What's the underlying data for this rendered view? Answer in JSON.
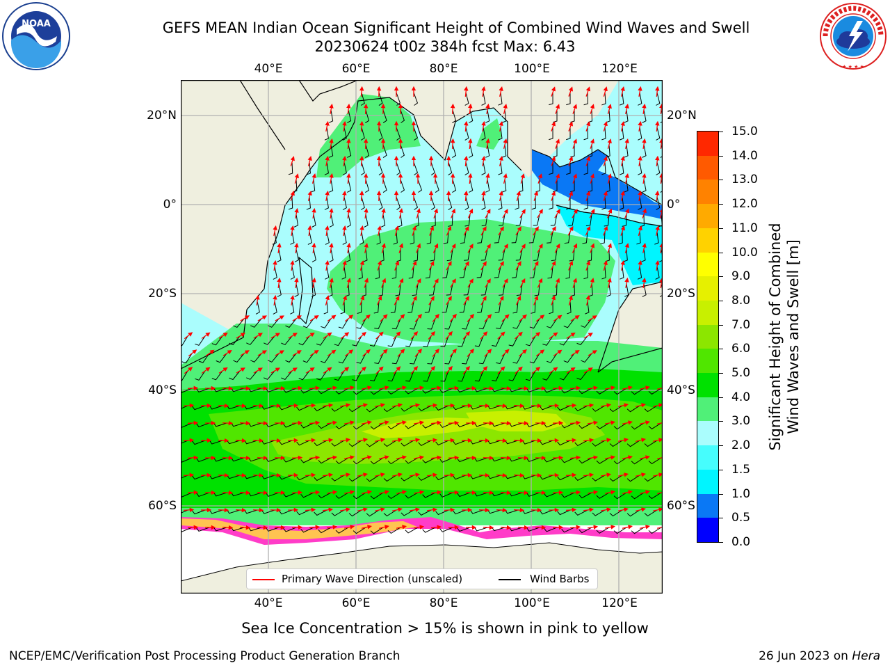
{
  "title": {
    "line1": "GEFS MEAN Indian Ocean Significant Height of Combined Wind Waves and Swell",
    "line2": "20230624 t00z 384h fcst   Max: 6.43"
  },
  "logos": {
    "noaa": {
      "text": "NOAA",
      "icon": "noaa-logo-icon"
    },
    "nws": {
      "icon": "nws-logo-icon"
    }
  },
  "axes": {
    "lon_ticks": [
      "40°E",
      "60°E",
      "80°E",
      "100°E",
      "120°E"
    ],
    "lat_ticks_left": [
      "20°N",
      "0°",
      "20°S",
      "40°S",
      "60°S"
    ],
    "lat_ticks_right": [
      "20°N",
      "0°",
      "20°S",
      "40°S",
      "60°S"
    ]
  },
  "colorbar": {
    "label": "Significant Height of Combined\nWind Waves and Swell [m]",
    "label_line1": "Significant Height of Combined",
    "label_line2": "Wind Waves and Swell [m]",
    "ticks": [
      "0.0",
      "0.5",
      "1.0",
      "1.5",
      "2.0",
      "3.0",
      "4.0",
      "5.0",
      "6.0",
      "7.0",
      "8.0",
      "9.0",
      "10.0",
      "11.0",
      "12.0",
      "13.0",
      "14.0",
      "15.0"
    ],
    "colors": [
      "#0000ff",
      "#0a78f5",
      "#00f5ff",
      "#46fdfd",
      "#aafdfd",
      "#50f078",
      "#00e100",
      "#50e600",
      "#8ce600",
      "#c8f000",
      "#e6f000",
      "#ffff00",
      "#ffd200",
      "#ffaa00",
      "#ff8200",
      "#ff5a00",
      "#ff2800"
    ]
  },
  "legend": {
    "primary_wave": {
      "label": "Primary Wave Direction (unscaled)",
      "color": "#ff0000"
    },
    "wind_barbs": {
      "label": "Wind Barbs",
      "color": "#000000"
    }
  },
  "subtitle": "Sea Ice Concentration > 15% is shown in pink to yellow",
  "footer": {
    "left": "NCEP/EMC/Verification Post Processing Product Generation Branch",
    "right_date": "26 Jun 2023 on",
    "right_host": "Hera"
  },
  "colors": {
    "land": "#efefdf",
    "sea_ice_white": "#ffffff",
    "ice_pink": "#ff3cc8",
    "ice_yellow": "#ffdc3c",
    "grid": "#b0b0b0"
  }
}
